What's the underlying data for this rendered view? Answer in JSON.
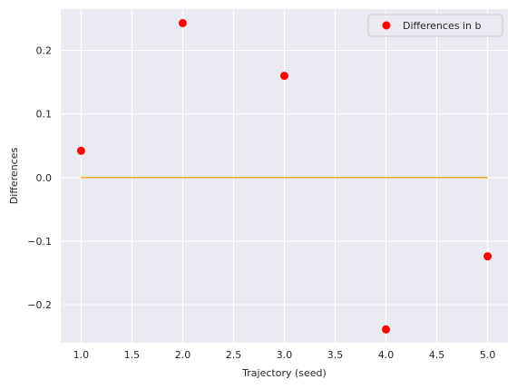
{
  "chart_data": {
    "type": "scatter",
    "title": "",
    "xlabel": "Trajectory (seed)",
    "ylabel": "Differences",
    "xlim": [
      0.8,
      5.2
    ],
    "ylim": [
      -0.26,
      0.265
    ],
    "xticks": [
      1.0,
      1.5,
      2.0,
      2.5,
      3.0,
      3.5,
      4.0,
      4.5,
      5.0
    ],
    "xtick_labels": [
      "1.0",
      "1.5",
      "2.0",
      "2.5",
      "3.0",
      "3.5",
      "4.0",
      "4.5",
      "5.0"
    ],
    "yticks": [
      -0.2,
      -0.1,
      0.0,
      0.1,
      0.2
    ],
    "ytick_labels": [
      "−0.2",
      "−0.1",
      "0.0",
      "0.1",
      "0.2"
    ],
    "grid": true,
    "legend_position": "top-right",
    "series": [
      {
        "name": "Differences in b",
        "kind": "scatter",
        "color": "#ff0000",
        "x": [
          1,
          2,
          3,
          4,
          5
        ],
        "y": [
          0.042,
          0.243,
          0.16,
          -0.239,
          -0.124
        ]
      },
      {
        "kind": "line",
        "color": "#ffa500",
        "x": [
          1,
          5
        ],
        "y": [
          0.0,
          0.0
        ]
      }
    ]
  },
  "colors": {
    "plot_background": "#eaeaf2",
    "grid": "#ffffff"
  }
}
